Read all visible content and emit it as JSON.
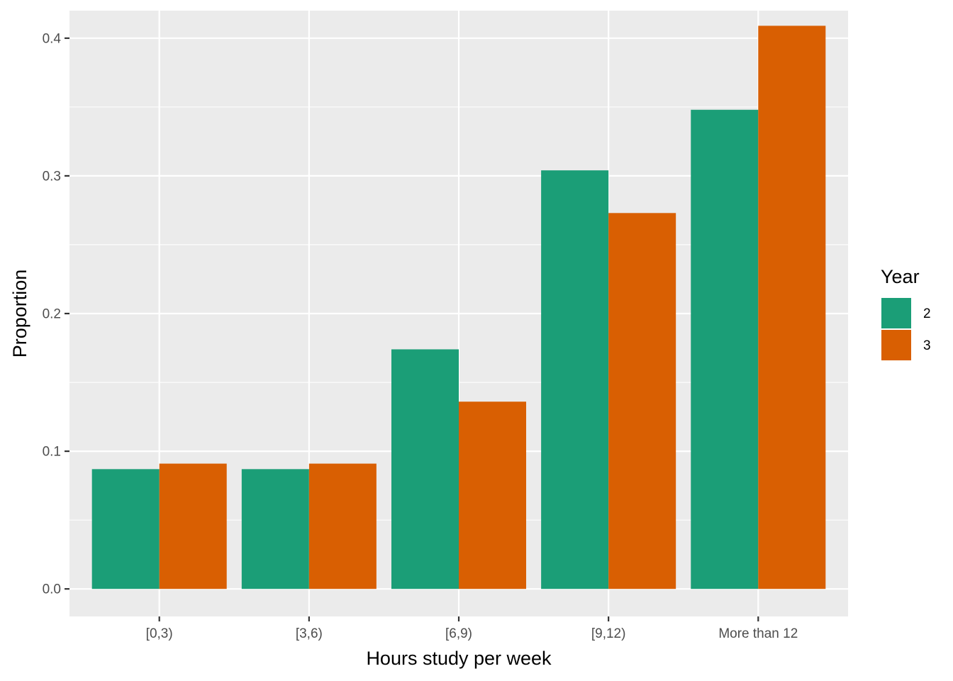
{
  "chart_data": {
    "type": "bar",
    "title": "",
    "xlabel": "Hours study per week",
    "ylabel": "Proportion",
    "categories": [
      "[0,3)",
      "[3,6)",
      "[6,9)",
      "[9,12)",
      "More than 12"
    ],
    "series": [
      {
        "name": "2",
        "color": "#1b9e77",
        "values": [
          0.087,
          0.087,
          0.174,
          0.304,
          0.348
        ]
      },
      {
        "name": "3",
        "color": "#d95f02",
        "values": [
          0.091,
          0.091,
          0.136,
          0.273,
          0.409
        ]
      }
    ],
    "ylim": [
      -0.02,
      0.42
    ],
    "yticks": [
      0.0,
      0.1,
      0.2,
      0.3,
      0.4
    ],
    "ytick_labels": [
      "0.0",
      "0.1",
      "0.2",
      "0.3",
      "0.4"
    ],
    "grid": true,
    "legend": {
      "title": "Year",
      "position": "right"
    },
    "panel_background": "#ebebeb",
    "grid_color": "#ffffff"
  }
}
